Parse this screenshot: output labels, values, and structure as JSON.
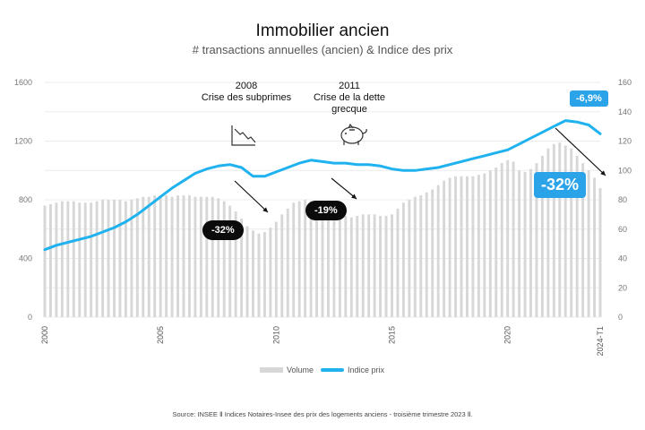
{
  "title": "Immobilier ancien",
  "subtitle": "# transactions annuelles (ancien) & Indice des prix",
  "source": "Source: INSEE Ⅱ Indices Notaires-Insee des prix des logements anciens - troisième trimestre 2023 Ⅱ.",
  "legend": {
    "volume": "Volume",
    "price": "Indice prix"
  },
  "events": [
    {
      "year": "2008",
      "label": "Crise des subprimes"
    },
    {
      "year": "2011",
      "label": "Crise de la dette grecque"
    }
  ],
  "annotations": {
    "drop_2008": "-32%",
    "drop_2011": "-19%",
    "drop_recent": "-32%",
    "price_drop_recent": "-6,9%"
  },
  "colors": {
    "bars": "#d7d7d7",
    "line": "#1fb2ef",
    "pill_dark": "#0b0b0b",
    "pill_blue": "#2aa3e8"
  },
  "icons": [
    "declining-chart-icon",
    "piggy-bank-icon"
  ],
  "chart_data": {
    "type": "bar+line",
    "left_axis": {
      "ylim": [
        0,
        1600
      ],
      "ticks": [
        "0",
        "400",
        "800",
        "1200",
        "1600"
      ]
    },
    "right_axis": {
      "ylim": [
        0,
        160
      ],
      "ticks": [
        "0",
        "20",
        "40",
        "60",
        "80",
        "100",
        "120",
        "140",
        "160"
      ]
    },
    "x_ticks": [
      "2000",
      "2005",
      "2010",
      "2015",
      "2020",
      "2024-T1"
    ],
    "x_range": [
      2000.0,
      2024.0
    ],
    "grid": true,
    "series": [
      {
        "name": "Volume",
        "axis": "left",
        "type": "bar",
        "x": [
          2000.0,
          2000.25,
          2000.5,
          2000.75,
          2001.0,
          2001.25,
          2001.5,
          2001.75,
          2002.0,
          2002.25,
          2002.5,
          2002.75,
          2003.0,
          2003.25,
          2003.5,
          2003.75,
          2004.0,
          2004.25,
          2004.5,
          2004.75,
          2005.0,
          2005.25,
          2005.5,
          2005.75,
          2006.0,
          2006.25,
          2006.5,
          2006.75,
          2007.0,
          2007.25,
          2007.5,
          2007.75,
          2008.0,
          2008.25,
          2008.5,
          2008.75,
          2009.0,
          2009.25,
          2009.5,
          2009.75,
          2010.0,
          2010.25,
          2010.5,
          2010.75,
          2011.0,
          2011.25,
          2011.5,
          2011.75,
          2012.0,
          2012.25,
          2012.5,
          2012.75,
          2013.0,
          2013.25,
          2013.5,
          2013.75,
          2014.0,
          2014.25,
          2014.5,
          2014.75,
          2015.0,
          2015.25,
          2015.5,
          2015.75,
          2016.0,
          2016.25,
          2016.5,
          2016.75,
          2017.0,
          2017.25,
          2017.5,
          2017.75,
          2018.0,
          2018.25,
          2018.5,
          2018.75,
          2019.0,
          2019.25,
          2019.5,
          2019.75,
          2020.0,
          2020.25,
          2020.5,
          2020.75,
          2021.0,
          2021.25,
          2021.5,
          2021.75,
          2022.0,
          2022.25,
          2022.5,
          2022.75,
          2023.0,
          2023.25,
          2023.5,
          2023.75,
          2024.0
        ],
        "values": [
          760,
          770,
          780,
          790,
          790,
          790,
          780,
          780,
          780,
          790,
          800,
          800,
          800,
          800,
          790,
          800,
          810,
          820,
          820,
          830,
          830,
          830,
          820,
          830,
          830,
          830,
          820,
          820,
          820,
          820,
          810,
          790,
          760,
          720,
          670,
          620,
          590,
          570,
          580,
          610,
          650,
          700,
          740,
          780,
          790,
          800,
          790,
          780,
          760,
          740,
          720,
          700,
          690,
          680,
          690,
          700,
          700,
          700,
          690,
          690,
          700,
          740,
          780,
          800,
          820,
          830,
          850,
          870,
          900,
          930,
          950,
          960,
          960,
          960,
          960,
          970,
          980,
          1000,
          1020,
          1050,
          1070,
          1060,
          1000,
          990,
          1010,
          1050,
          1100,
          1150,
          1180,
          1190,
          1170,
          1150,
          1100,
          1050,
          1000,
          950,
          880
        ]
      },
      {
        "name": "Indice prix",
        "axis": "right",
        "type": "line",
        "x": [
          2000.0,
          2000.5,
          2001.0,
          2001.5,
          2002.0,
          2002.5,
          2003.0,
          2003.5,
          2004.0,
          2004.5,
          2005.0,
          2005.5,
          2006.0,
          2006.5,
          2007.0,
          2007.5,
          2008.0,
          2008.5,
          2009.0,
          2009.5,
          2010.0,
          2010.5,
          2011.0,
          2011.5,
          2012.0,
          2012.5,
          2013.0,
          2013.5,
          2014.0,
          2014.5,
          2015.0,
          2015.5,
          2016.0,
          2016.5,
          2017.0,
          2017.5,
          2018.0,
          2018.5,
          2019.0,
          2019.5,
          2020.0,
          2020.5,
          2021.0,
          2021.5,
          2022.0,
          2022.5,
          2023.0,
          2023.5,
          2024.0
        ],
        "values": [
          46,
          49,
          51,
          53,
          55,
          58,
          61,
          65,
          70,
          76,
          82,
          88,
          93,
          98,
          101,
          103,
          104,
          102,
          96,
          96,
          99,
          102,
          105,
          107,
          106,
          105,
          105,
          104,
          104,
          103,
          101,
          100,
          100,
          101,
          102,
          104,
          106,
          108,
          110,
          112,
          114,
          118,
          122,
          126,
          130,
          134,
          133,
          131,
          125
        ]
      }
    ]
  }
}
